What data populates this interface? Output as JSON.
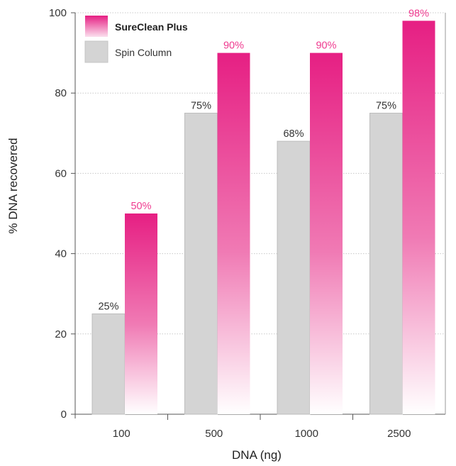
{
  "chart_data": {
    "type": "bar",
    "xlabel": "DNA (ng)",
    "ylabel": "% DNA recovered",
    "ylim": [
      0,
      100
    ],
    "yticks": [
      0,
      20,
      40,
      60,
      80,
      100
    ],
    "categories": [
      "100",
      "500",
      "1000",
      "2500"
    ],
    "grid": true,
    "legend_position": "top-left",
    "series": [
      {
        "name": "Spin Column",
        "color": "#d4d4d4",
        "values": [
          25,
          75,
          68,
          75
        ],
        "labels": [
          "25%",
          "75%",
          "68%",
          "75%"
        ],
        "label_color": "#333333"
      },
      {
        "name": "SureClean Plus",
        "color": "#e61f83",
        "gradient": true,
        "values": [
          50,
          90,
          90,
          98
        ],
        "labels": [
          "50%",
          "90%",
          "90%",
          "98%"
        ],
        "label_color": "#ef3a8f"
      }
    ]
  }
}
